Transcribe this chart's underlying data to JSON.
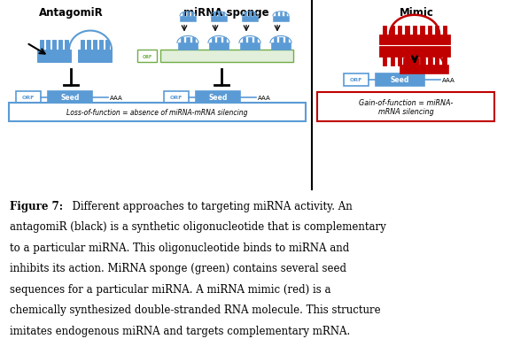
{
  "title_antagomir": "AntagomiR",
  "title_sponge": "miRNA sponge",
  "title_mimic": "Mimic",
  "loss_label": "Loss-of-function = absence of miRNA-mRNA silencing",
  "gain_label": "Gain-of-function = miRNA-\nmRNA silencing",
  "caption_bold": "Figure 7:",
  "caption_rest": "  Different approaches to targeting miRNA activity. An antagomiR (black) is a synthetic oligonucleotide that is complementary to a particular miRNA. This oligonucleotide binds to miRNA and inhibits its action. MiRNA sponge (green) contains several seed sequences for a particular miRNA. A miRNA mimic (red) is a chemically synthesized double-stranded RNA molecule. This structure imitates endogenous miRNA and targets complementary mRNA.",
  "blue_color": "#5B9BD5",
  "blue_dark": "#2E75B6",
  "blue_light": "#BDD7EE",
  "green_color": "#70AD47",
  "green_light": "#E2EFDA",
  "red_color": "#C00000",
  "red_light": "#FFE0E0",
  "black": "#000000",
  "white": "#FFFFFF",
  "bg": "#FFFFFF"
}
